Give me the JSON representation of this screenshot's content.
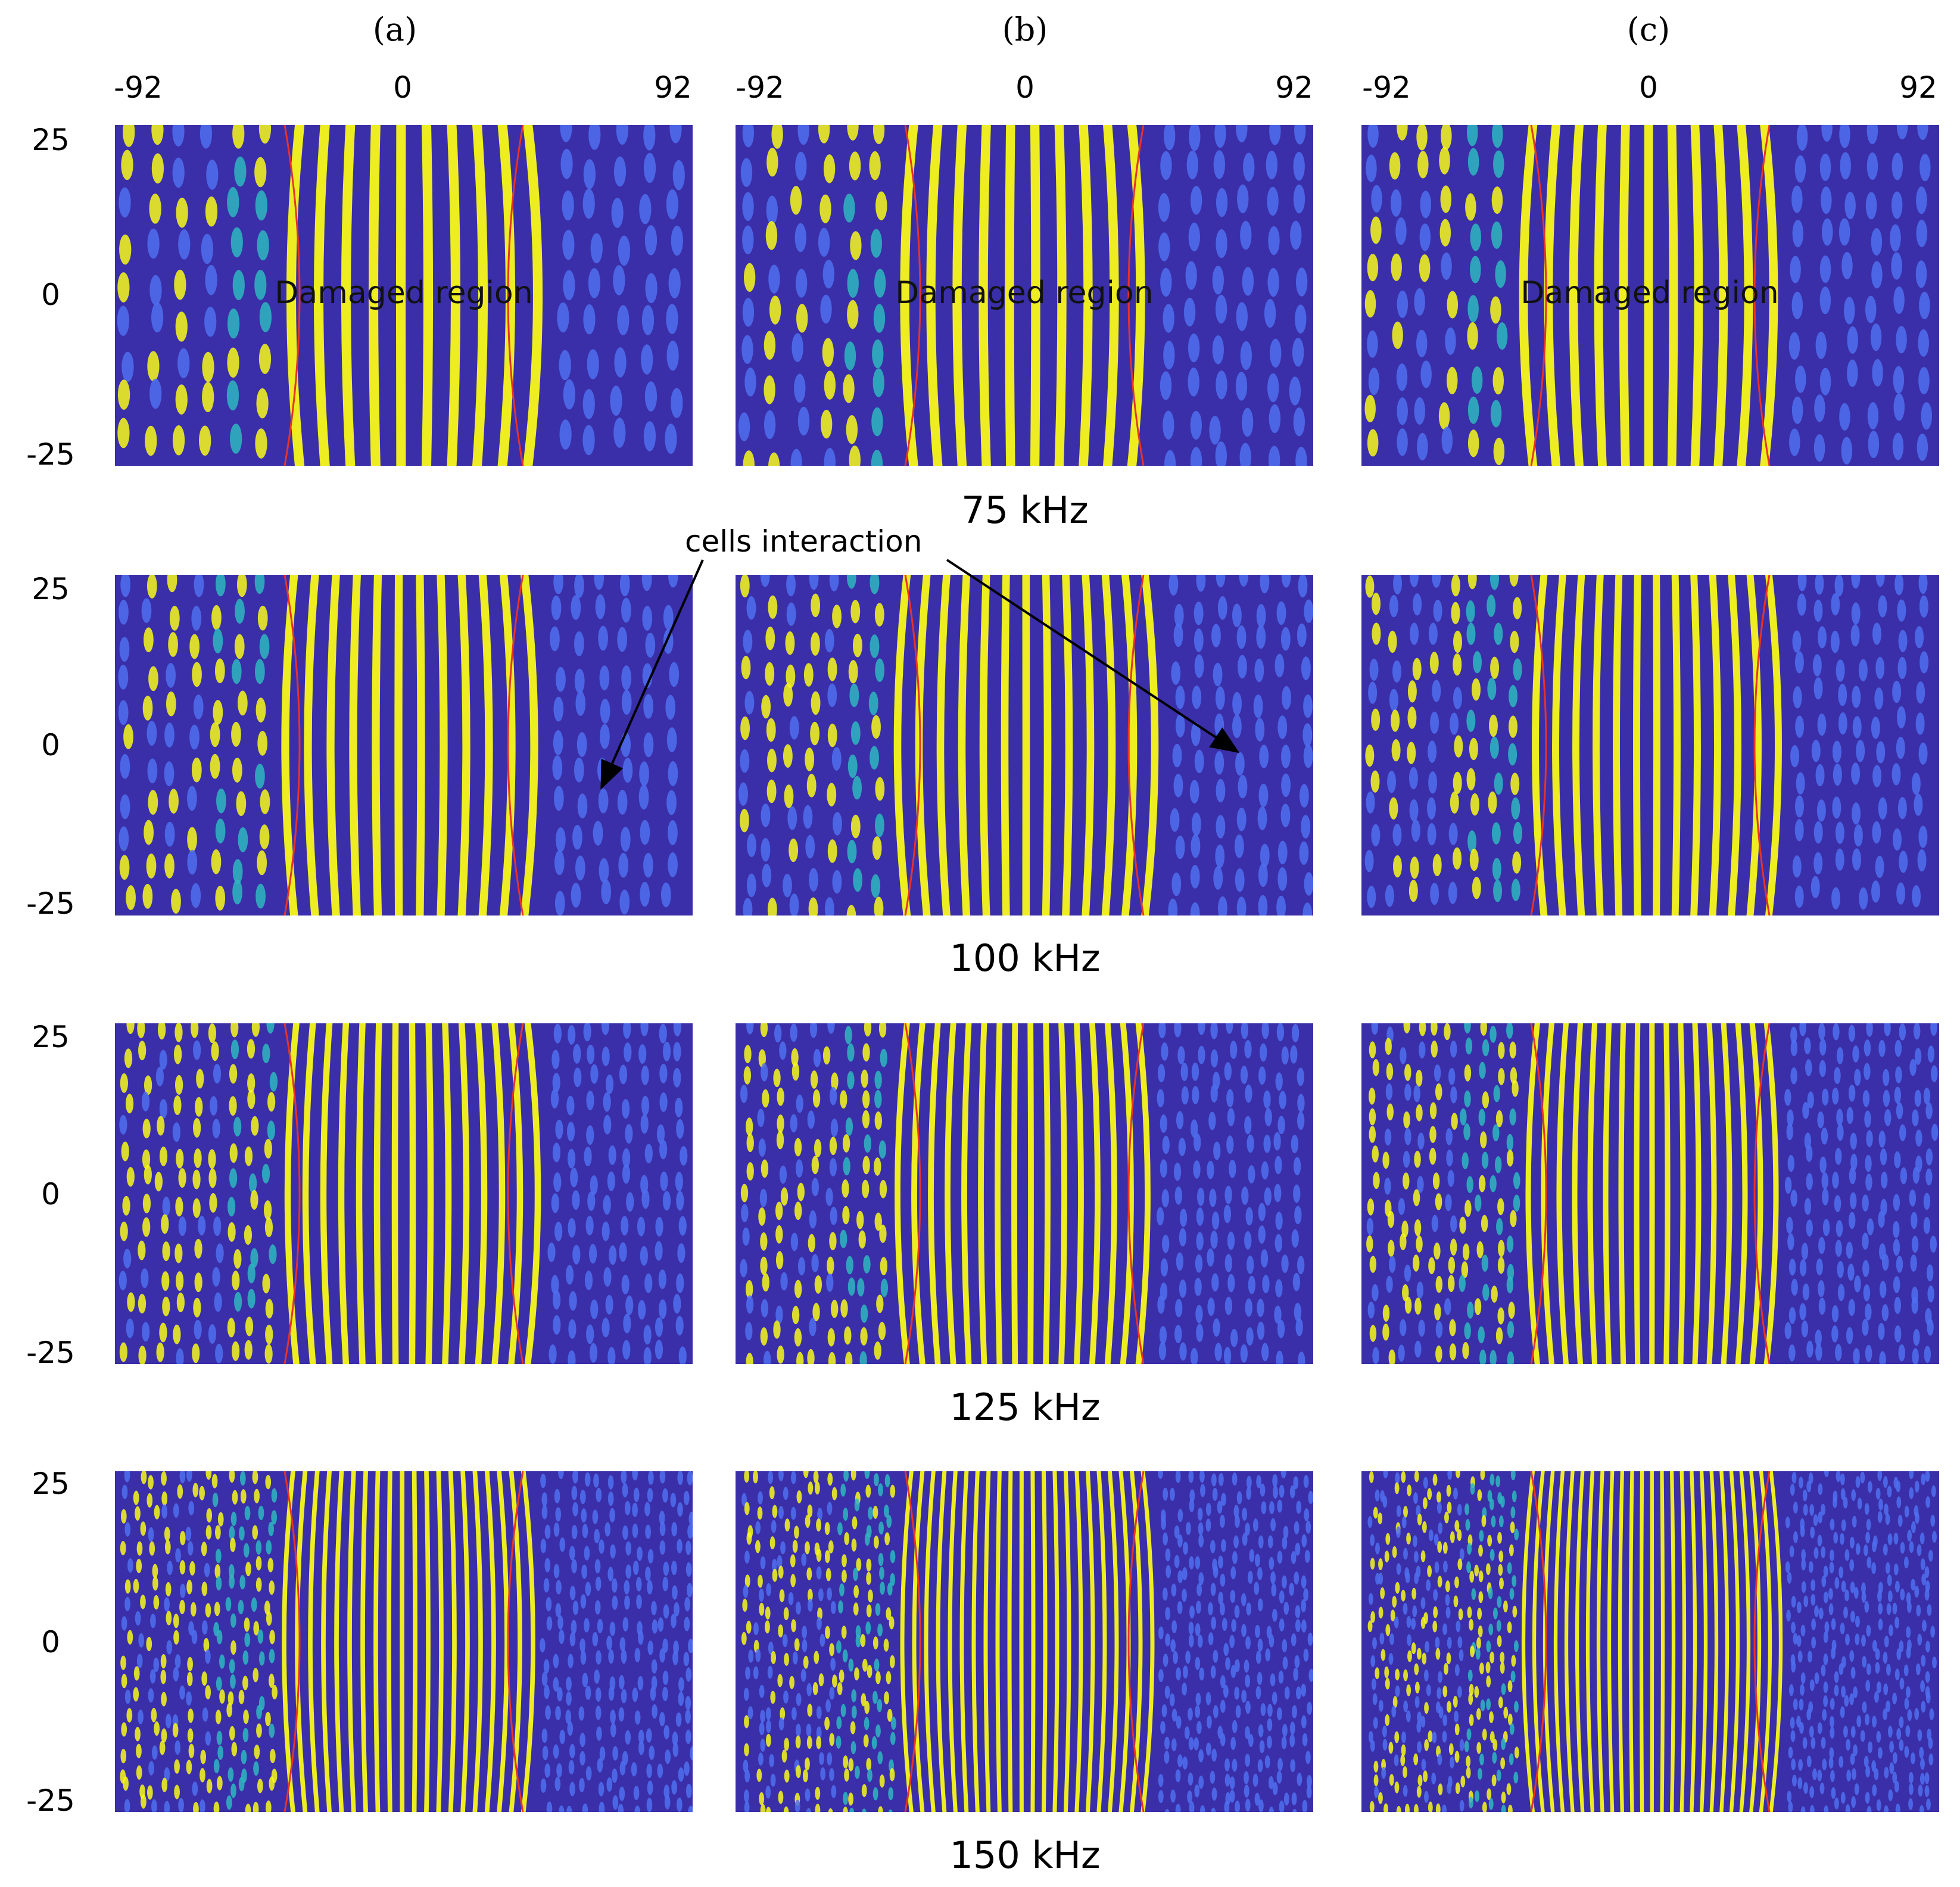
{
  "figure": {
    "columns": [
      {
        "label": "(a)"
      },
      {
        "label": "(b)"
      },
      {
        "label": "(c)"
      }
    ],
    "x_ticks": [
      "-92",
      "0",
      "92"
    ],
    "y_ticks": [
      "25",
      "0",
      "-25"
    ],
    "rows": [
      {
        "frequency": "75 kHz"
      },
      {
        "frequency": "100 kHz"
      },
      {
        "frequency": "125 kHz"
      },
      {
        "frequency": "150 kHz"
      }
    ],
    "region_label": "Damaged region",
    "callout_label": "cells interaction",
    "colors": {
      "background": "#3a2fa8",
      "wave_low": "#4f6ff0",
      "wave_mid": "#2fb7c0",
      "wave_high": "#f8f81a",
      "damage_boundary": "#e8322a"
    }
  }
}
